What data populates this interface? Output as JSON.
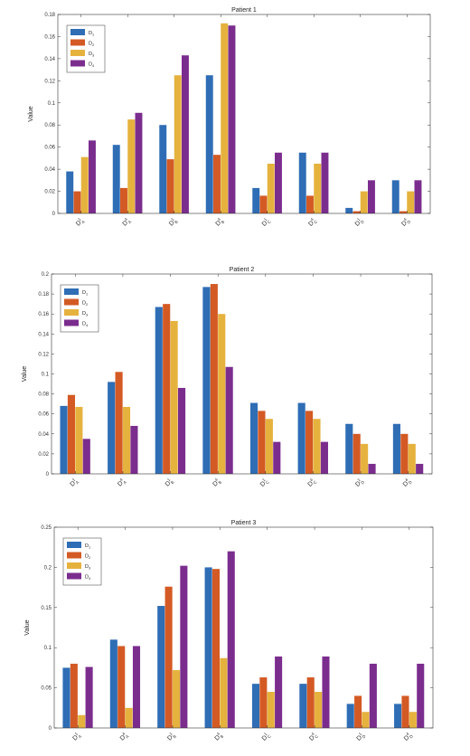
{
  "colors": {
    "D1": "#2f6db5",
    "D2": "#d35a24",
    "D3": "#e6b23e",
    "D4": "#7b2d8e",
    "axis": "#333333"
  },
  "chart_data": [
    {
      "type": "bar",
      "title": "Patient 1",
      "ylabel": "Value",
      "xlabel": "",
      "ylim": [
        0,
        0.18
      ],
      "yticks": [
        "0",
        "0.02",
        "0.04",
        "0.06",
        "0.08",
        "0.1",
        "0.12",
        "0.14",
        "0.16",
        "0.18"
      ],
      "categories": [
        {
          "main": "D",
          "sup": "1",
          "sub": "A"
        },
        {
          "main": "D",
          "sup": "4",
          "sub": "A"
        },
        {
          "main": "D",
          "sup": "1",
          "sub": "B"
        },
        {
          "main": "D",
          "sup": "4",
          "sub": "B"
        },
        {
          "main": "D",
          "sup": "1",
          "sub": "C"
        },
        {
          "main": "D",
          "sup": "4",
          "sub": "C"
        },
        {
          "main": "D",
          "sup": "1",
          "sub": "D"
        },
        {
          "main": "D",
          "sup": "4",
          "sub": "D"
        }
      ],
      "legend_position": "top-left",
      "series": [
        {
          "name": "D",
          "sub": "1",
          "values": [
            0.038,
            0.062,
            0.08,
            0.125,
            0.023,
            0.055,
            0.005,
            0.03
          ]
        },
        {
          "name": "D",
          "sub": "2",
          "values": [
            0.02,
            0.023,
            0.049,
            0.053,
            0.016,
            0.016,
            0.002,
            0.002
          ]
        },
        {
          "name": "D",
          "sub": "3",
          "values": [
            0.051,
            0.085,
            0.125,
            0.172,
            0.045,
            0.045,
            0.02,
            0.02
          ]
        },
        {
          "name": "D",
          "sub": "4",
          "values": [
            0.066,
            0.091,
            0.143,
            0.17,
            0.055,
            0.055,
            0.03,
            0.03
          ]
        }
      ]
    },
    {
      "type": "bar",
      "title": "Patient 2",
      "ylabel": "Value",
      "xlabel": "",
      "ylim": [
        0,
        0.2
      ],
      "yticks": [
        "0",
        "0.02",
        "0.04",
        "0.06",
        "0.08",
        "0.1",
        "0.12",
        "0.14",
        "0.16",
        "0.18",
        "0.2"
      ],
      "categories": [
        {
          "main": "D",
          "sup": "1",
          "sub": "A"
        },
        {
          "main": "D",
          "sup": "4",
          "sub": "A"
        },
        {
          "main": "D",
          "sup": "1",
          "sub": "B"
        },
        {
          "main": "D",
          "sup": "4",
          "sub": "B"
        },
        {
          "main": "D",
          "sup": "1",
          "sub": "C"
        },
        {
          "main": "D",
          "sup": "4",
          "sub": "C"
        },
        {
          "main": "D",
          "sup": "1",
          "sub": "D"
        },
        {
          "main": "D",
          "sup": "4",
          "sub": "D"
        }
      ],
      "legend_position": "top-left",
      "series": [
        {
          "name": "D",
          "sub": "1",
          "values": [
            0.068,
            0.092,
            0.167,
            0.187,
            0.071,
            0.071,
            0.05,
            0.05
          ]
        },
        {
          "name": "D",
          "sub": "2",
          "values": [
            0.079,
            0.102,
            0.17,
            0.19,
            0.063,
            0.063,
            0.04,
            0.04
          ]
        },
        {
          "name": "D",
          "sub": "3",
          "values": [
            0.067,
            0.067,
            0.153,
            0.16,
            0.055,
            0.055,
            0.03,
            0.03
          ]
        },
        {
          "name": "D",
          "sub": "4",
          "values": [
            0.035,
            0.048,
            0.086,
            0.107,
            0.032,
            0.032,
            0.01,
            0.01
          ]
        }
      ]
    },
    {
      "type": "bar",
      "title": "Patient 3",
      "ylabel": "Value",
      "xlabel": "",
      "ylim": [
        0,
        0.25
      ],
      "yticks": [
        "0",
        "0.05",
        "0.1",
        "0.15",
        "0.2",
        "0.25"
      ],
      "categories": [
        {
          "main": "D",
          "sup": "1",
          "sub": "A"
        },
        {
          "main": "D",
          "sup": "4",
          "sub": "A"
        },
        {
          "main": "D",
          "sup": "1",
          "sub": "B"
        },
        {
          "main": "D",
          "sup": "4",
          "sub": "B"
        },
        {
          "main": "D",
          "sup": "1",
          "sub": "C"
        },
        {
          "main": "D",
          "sup": "4",
          "sub": "C"
        },
        {
          "main": "D",
          "sup": "1",
          "sub": "D"
        },
        {
          "main": "D",
          "sup": "4",
          "sub": "D"
        }
      ],
      "legend_position": "top-left",
      "series": [
        {
          "name": "D",
          "sub": "1",
          "values": [
            0.075,
            0.11,
            0.152,
            0.2,
            0.055,
            0.055,
            0.03,
            0.03
          ]
        },
        {
          "name": "D",
          "sub": "2",
          "values": [
            0.08,
            0.102,
            0.176,
            0.198,
            0.063,
            0.063,
            0.04,
            0.04
          ]
        },
        {
          "name": "D",
          "sub": "3",
          "values": [
            0.016,
            0.025,
            0.072,
            0.087,
            0.045,
            0.045,
            0.02,
            0.02
          ]
        },
        {
          "name": "D",
          "sub": "4",
          "values": [
            0.076,
            0.102,
            0.202,
            0.22,
            0.089,
            0.089,
            0.08,
            0.08
          ]
        }
      ]
    }
  ]
}
